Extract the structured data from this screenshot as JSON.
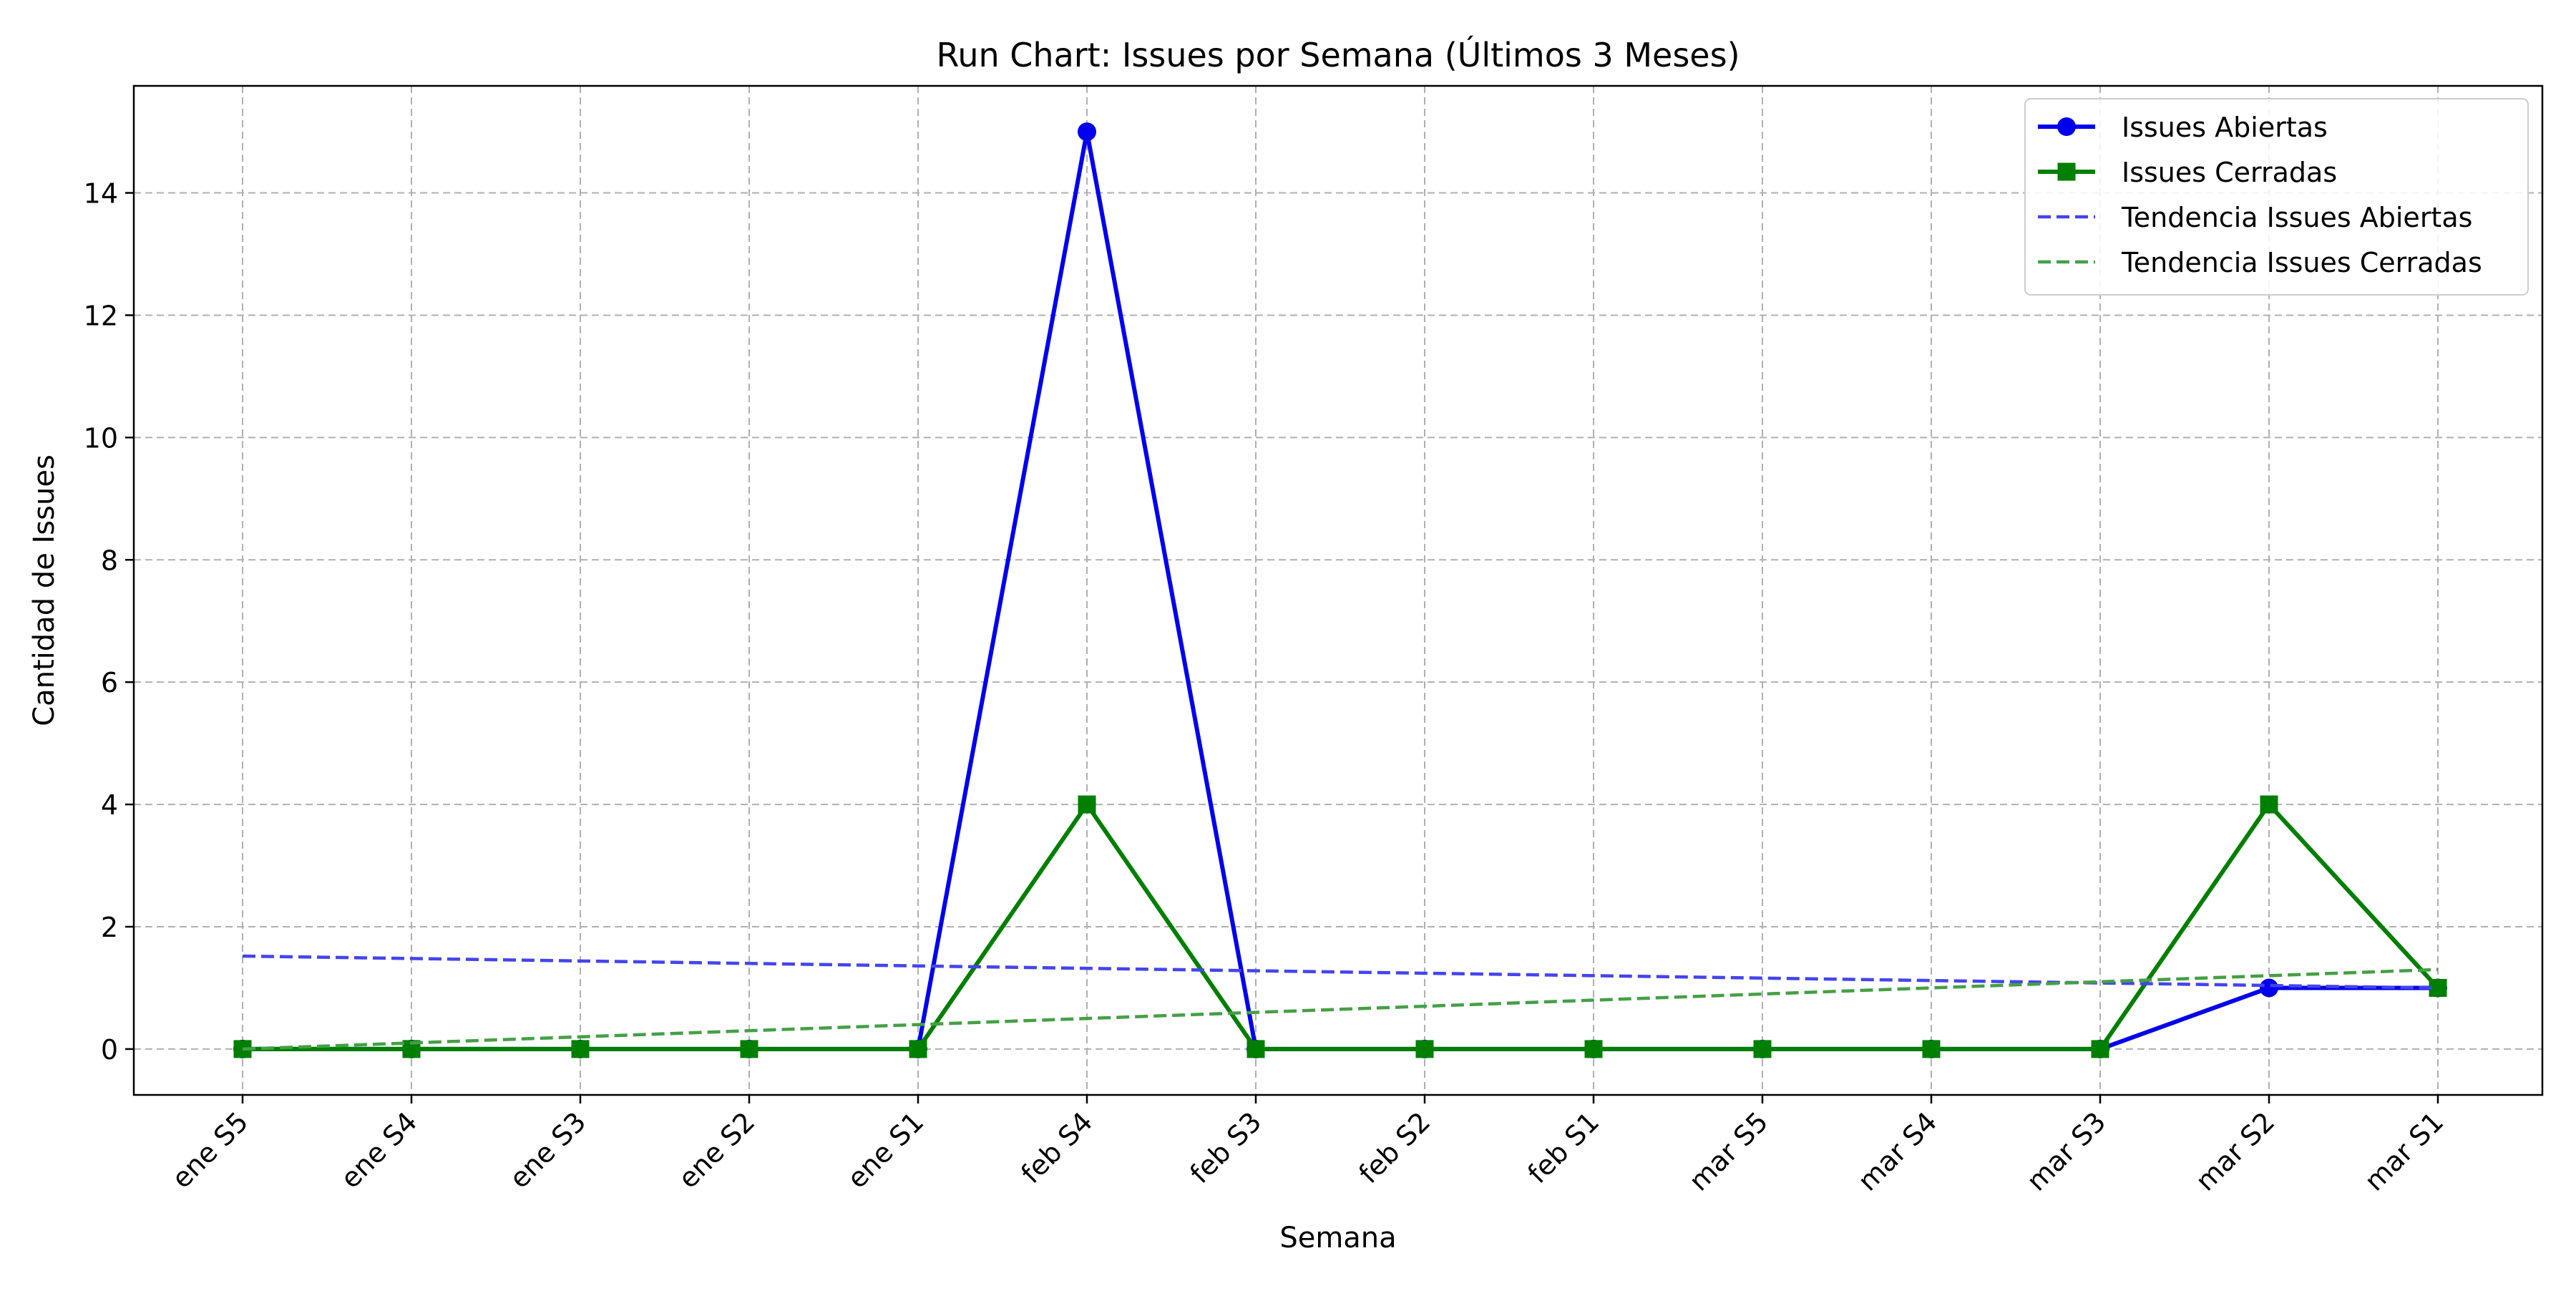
{
  "chart_data": {
    "type": "line",
    "title": "Run Chart: Issues por Semana (Últimos 3 Meses)",
    "xlabel": "Semana",
    "ylabel": "Cantidad de Issues",
    "categories": [
      "ene S5",
      "ene S4",
      "ene S3",
      "ene S2",
      "ene S1",
      "feb S4",
      "feb S3",
      "feb S2",
      "feb S1",
      "mar S5",
      "mar S4",
      "mar S3",
      "mar S2",
      "mar S1"
    ],
    "series": [
      {
        "name": "Issues Abiertas",
        "values": [
          0,
          0,
          0,
          0,
          0,
          15,
          0,
          0,
          0,
          0,
          0,
          0,
          1,
          1
        ],
        "color": "#0000ee",
        "marker": "circle",
        "line_style": "solid"
      },
      {
        "name": "Issues Cerradas",
        "values": [
          0,
          0,
          0,
          0,
          0,
          4,
          0,
          0,
          0,
          0,
          0,
          0,
          4,
          1
        ],
        "color": "#007f00",
        "marker": "square",
        "line_style": "solid"
      },
      {
        "name": "Tendencia Issues Abiertas",
        "values": [
          1.52,
          1.48,
          1.44,
          1.4,
          1.36,
          1.32,
          1.28,
          1.24,
          1.2,
          1.16,
          1.12,
          1.08,
          1.04,
          1.0
        ],
        "color": "#4444ee",
        "marker": "none",
        "line_style": "dashed"
      },
      {
        "name": "Tendencia Issues Cerradas",
        "values": [
          0.0,
          0.1,
          0.2,
          0.3,
          0.4,
          0.5,
          0.6,
          0.7,
          0.8,
          0.9,
          1.0,
          1.1,
          1.2,
          1.3
        ],
        "color": "#44a044",
        "marker": "none",
        "line_style": "dashed"
      }
    ],
    "ylim": [
      -0.75,
      15.75
    ],
    "yticks": [
      0,
      2,
      4,
      6,
      8,
      10,
      12,
      14
    ],
    "grid": true,
    "legend_position": "top-right"
  }
}
